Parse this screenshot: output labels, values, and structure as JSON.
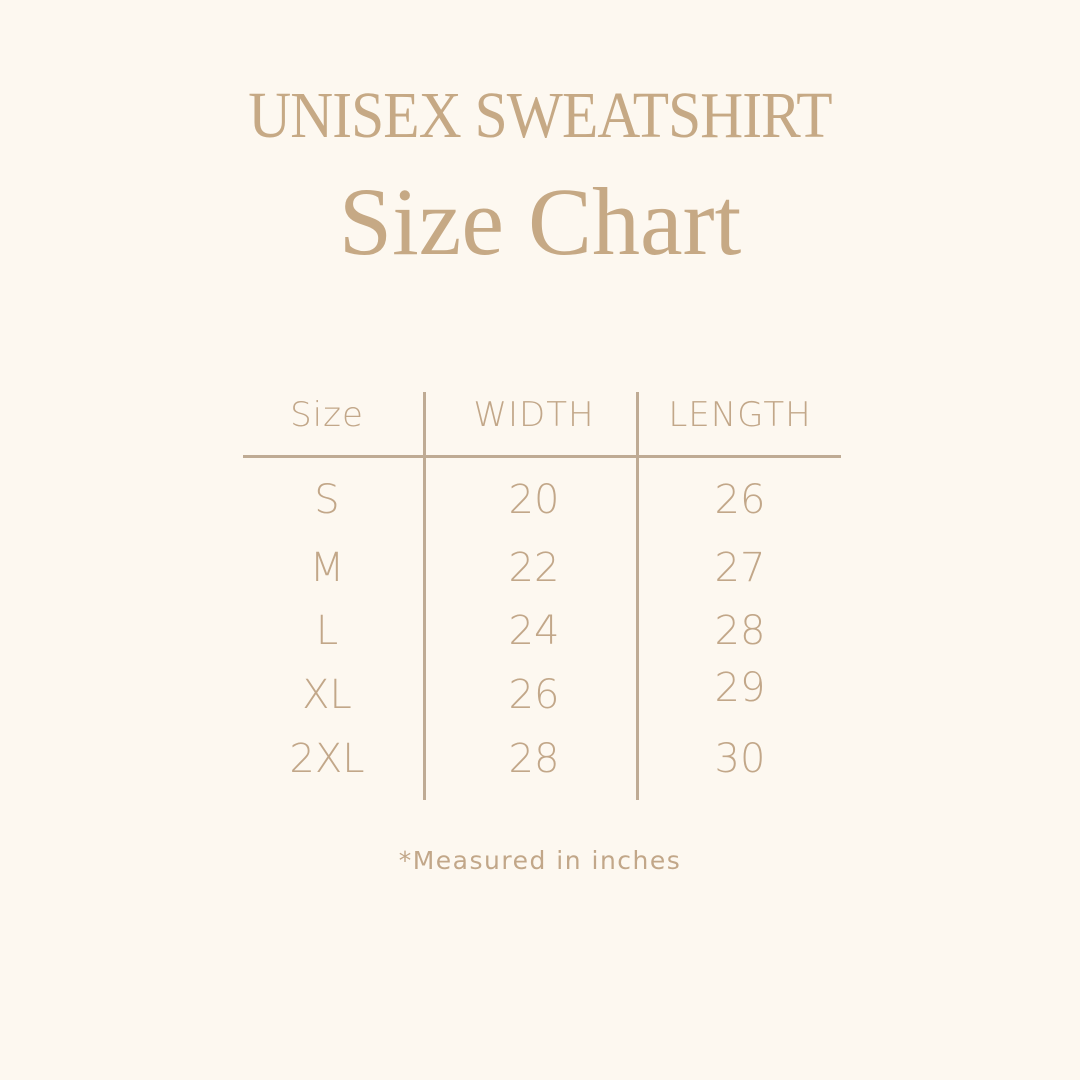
{
  "title": "UNISEX SWEATSHIRT",
  "subtitle": "Size Chart",
  "table": {
    "headers": [
      "Size",
      "WIDTH",
      "LENGTH"
    ],
    "rows": [
      [
        "S",
        "20",
        "26"
      ],
      [
        "M",
        "22",
        "27"
      ],
      [
        "L",
        "24",
        "28"
      ],
      [
        "XL",
        "26",
        "29"
      ],
      [
        "2XL",
        "28",
        "30"
      ]
    ]
  },
  "note": "*Measured in inches",
  "colors": {
    "background": "#fdf8f0",
    "text": "#c2a789",
    "lines": "#bfab94"
  }
}
